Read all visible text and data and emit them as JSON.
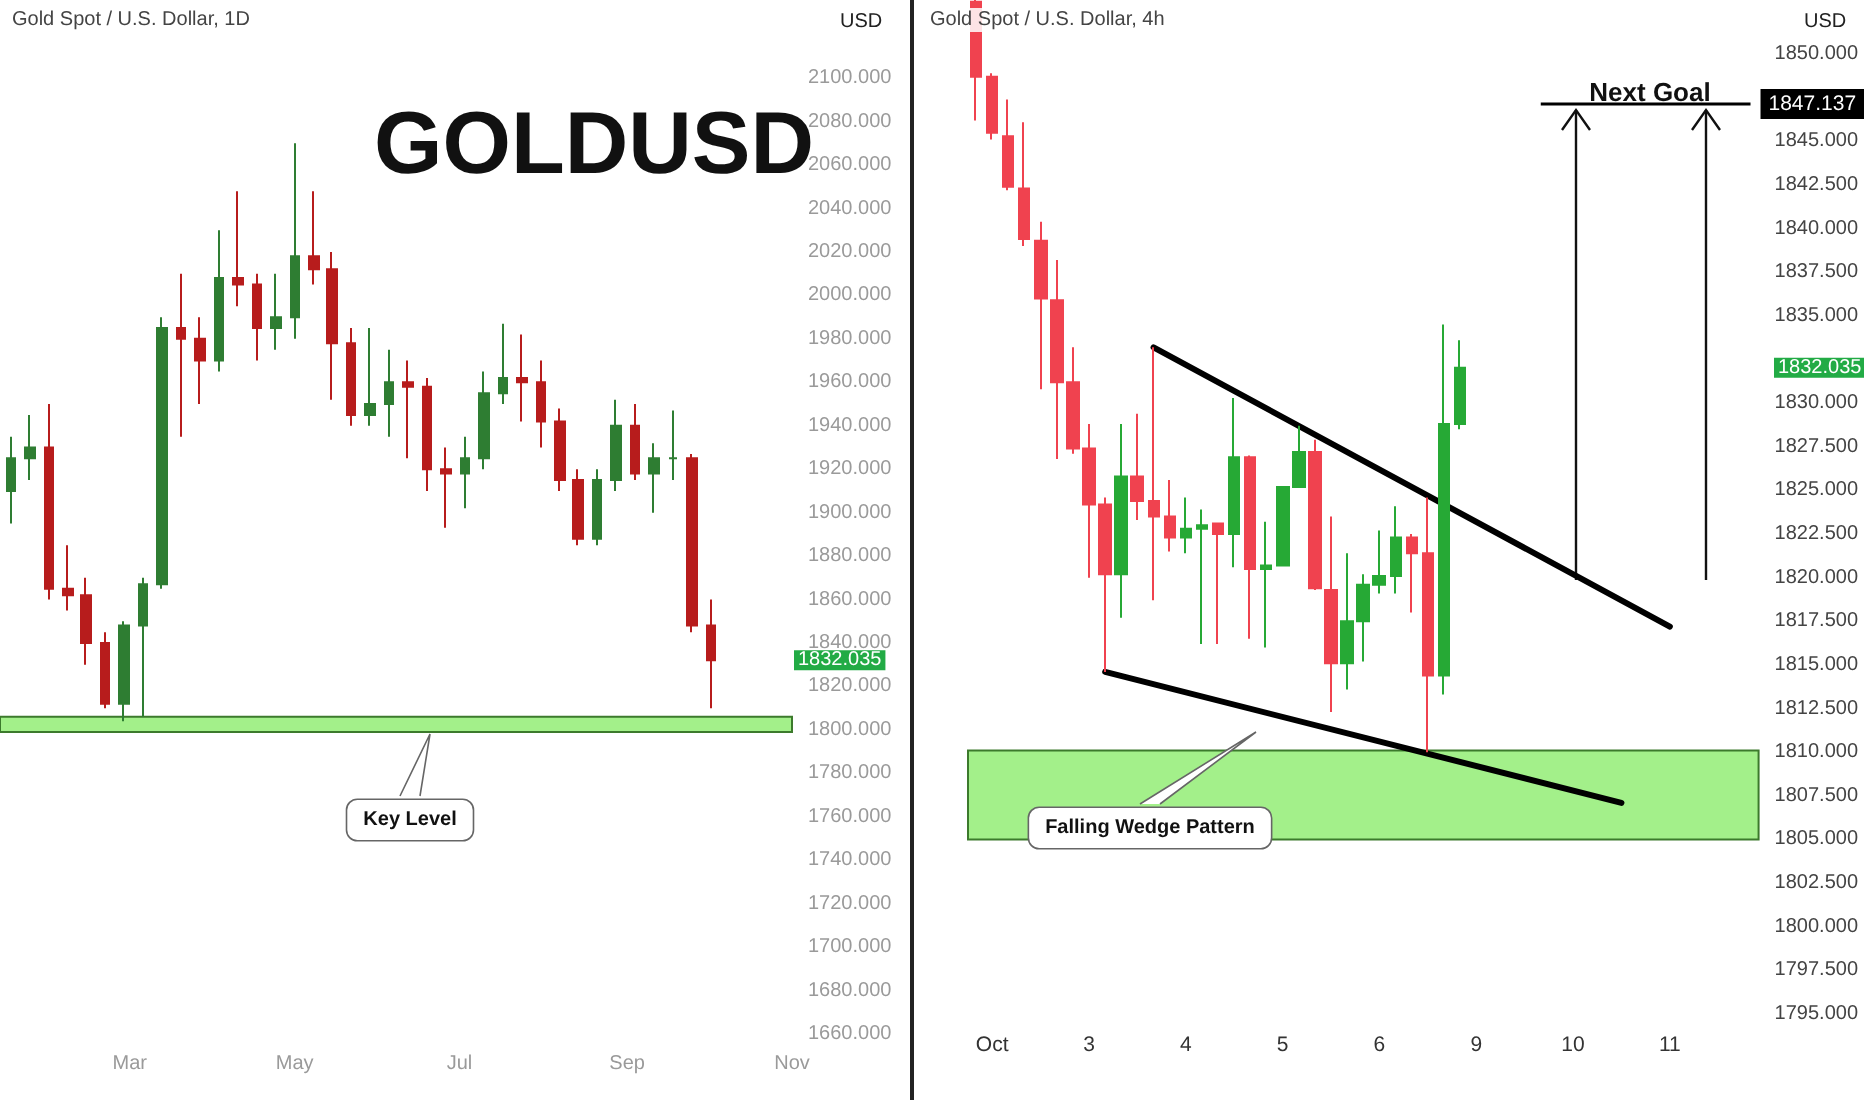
{
  "chart_data": [
    {
      "type": "candlestick",
      "title": "GOLDUSD",
      "subtitle": "Gold Spot / U.S. Dollar, 1D",
      "ylabel": "USD",
      "x": [
        "--01-16",
        "--01-23",
        "--01-30",
        "--02-06",
        "--02-13",
        "--02-20",
        "--02-27",
        "--03-06",
        "--03-13",
        "--03-20",
        "--03-27",
        "--04-03",
        "--04-10",
        "--04-17",
        "--04-24",
        "--05-01",
        "--05-08",
        "--05-15",
        "--05-22",
        "--05-29",
        "--06-05",
        "--06-12",
        "--06-19",
        "--06-26",
        "--07-03",
        "--07-10",
        "--07-17",
        "--07-24",
        "--07-31",
        "--08-07",
        "--08-14",
        "--08-21",
        "--08-28",
        "--09-04",
        "--09-11",
        "--09-18",
        "--09-25",
        "--10-02"
      ],
      "ohlc": [
        [
          1910,
          1935,
          1895,
          1925
        ],
        [
          1925,
          1945,
          1915,
          1930
        ],
        [
          1930,
          1950,
          1860,
          1865
        ],
        [
          1865,
          1885,
          1855,
          1862
        ],
        [
          1862,
          1870,
          1830,
          1840
        ],
        [
          1840,
          1845,
          1810,
          1812
        ],
        [
          1812,
          1850,
          1804,
          1848
        ],
        [
          1848,
          1870,
          1806,
          1867
        ],
        [
          1867,
          1990,
          1865,
          1985
        ],
        [
          1985,
          2010,
          1935,
          1980
        ],
        [
          1980,
          1990,
          1950,
          1970
        ],
        [
          1970,
          2030,
          1965,
          2008
        ],
        [
          2008,
          2048,
          1995,
          2005
        ],
        [
          2005,
          2010,
          1970,
          1985
        ],
        [
          1985,
          2010,
          1975,
          1990
        ],
        [
          1990,
          2070,
          1980,
          2018
        ],
        [
          2018,
          2048,
          2005,
          2012
        ],
        [
          2012,
          2020,
          1952,
          1978
        ],
        [
          1978,
          1985,
          1940,
          1945
        ],
        [
          1945,
          1985,
          1940,
          1950
        ],
        [
          1950,
          1975,
          1935,
          1960
        ],
        [
          1960,
          1970,
          1925,
          1958
        ],
        [
          1958,
          1962,
          1910,
          1920
        ],
        [
          1920,
          1930,
          1893,
          1918
        ],
        [
          1918,
          1935,
          1902,
          1925
        ],
        [
          1925,
          1965,
          1920,
          1955
        ],
        [
          1955,
          1987,
          1950,
          1962
        ],
        [
          1962,
          1982,
          1942,
          1960
        ],
        [
          1960,
          1970,
          1930,
          1942
        ],
        [
          1942,
          1948,
          1910,
          1915
        ],
        [
          1915,
          1920,
          1885,
          1888
        ],
        [
          1888,
          1920,
          1885,
          1915
        ],
        [
          1915,
          1952,
          1910,
          1940
        ],
        [
          1940,
          1950,
          1915,
          1918
        ],
        [
          1918,
          1932,
          1900,
          1925
        ],
        [
          1925,
          1947,
          1915,
          1925
        ],
        [
          1925,
          1927,
          1845,
          1848
        ],
        [
          1848,
          1860,
          1810,
          1832.035
        ]
      ],
      "colors": [
        "#2e7d32",
        "#2e7d32",
        "#b71c1c",
        "#b71c1c",
        "#b71c1c",
        "#b71c1c",
        "#2e7d32",
        "#2e7d32",
        "#2e7d32",
        "#b71c1c",
        "#b71c1c",
        "#2e7d32",
        "#b71c1c",
        "#b71c1c",
        "#2e7d32",
        "#2e7d32",
        "#b71c1c",
        "#b71c1c",
        "#b71c1c",
        "#2e7d32",
        "#2e7d32",
        "#b71c1c",
        "#b71c1c",
        "#b71c1c",
        "#2e7d32",
        "#2e7d32",
        "#2e7d32",
        "#b71c1c",
        "#b71c1c",
        "#b71c1c",
        "#b71c1c",
        "#2e7d32",
        "#2e7d32",
        "#b71c1c",
        "#2e7d32",
        "#2e7d32",
        "#b71c1c",
        "#b71c1c"
      ],
      "xlim": [
        "--01-12",
        "--11-01"
      ],
      "xticks": [
        {
          "value": "--03-01",
          "label": "Mar"
        },
        {
          "value": "--05-01",
          "label": "May"
        },
        {
          "value": "--07-01",
          "label": "Jul"
        },
        {
          "value": "--09-01",
          "label": "Sep"
        },
        {
          "value": "--11-01",
          "label": "Nov"
        }
      ],
      "ylim": [
        1660,
        2136
      ],
      "yticks": [
        {
          "value": 1660,
          "label": "1660.000"
        },
        {
          "value": 1680,
          "label": "1680.000"
        },
        {
          "value": 1700,
          "label": "1700.000"
        },
        {
          "value": 1720,
          "label": "1720.000"
        },
        {
          "value": 1740,
          "label": "1740.000"
        },
        {
          "value": 1760,
          "label": "1760.000"
        },
        {
          "value": 1780,
          "label": "1780.000"
        },
        {
          "value": 1800,
          "label": "1800.000"
        },
        {
          "value": 1820,
          "label": "1820.000"
        },
        {
          "value": 1840,
          "label": "1840.000"
        },
        {
          "value": 1860,
          "label": "1860.000"
        },
        {
          "value": 1880,
          "label": "1880.000"
        },
        {
          "value": 1900,
          "label": "1900.000"
        },
        {
          "value": 1920,
          "label": "1920.000"
        },
        {
          "value": 1940,
          "label": "1940.000"
        },
        {
          "value": 1960,
          "label": "1960.000"
        },
        {
          "value": 1980,
          "label": "1980.000"
        },
        {
          "value": 2000,
          "label": "2000.000"
        },
        {
          "value": 2020,
          "label": "2020.000"
        },
        {
          "value": 2040,
          "label": "2040.000"
        },
        {
          "value": 2060,
          "label": "2060.000"
        },
        {
          "value": 2080,
          "label": "2080.000"
        },
        {
          "value": 2100,
          "label": "2100.000"
        }
      ],
      "bands": [
        {
          "axis": "y",
          "from": 1799,
          "to": 1806,
          "color": "#a3f08a"
        }
      ],
      "annotations": [
        "Key Level",
        "1832.035"
      ]
    },
    {
      "type": "candlestick",
      "subtitle": "Gold Spot / U.S. Dollar, 4h",
      "ylabel": "USD",
      "categories": [
        null,
        "Oct",
        null,
        null,
        null,
        null,
        null,
        "3",
        null,
        null,
        null,
        null,
        null,
        "4",
        null,
        null,
        null,
        null,
        null,
        "5",
        null,
        null,
        null,
        null,
        null,
        "6",
        null,
        null,
        null,
        null,
        null,
        "9",
        null,
        null,
        null,
        null,
        null,
        "10",
        null,
        null,
        null,
        null,
        null,
        "11",
        null,
        null,
        null,
        null,
        null
      ],
      "ohlc": [
        [
          1853.0,
          1853.1,
          1846.2,
          1848.7
        ],
        [
          1848.7,
          1848.9,
          1845.1,
          1845.5
        ],
        [
          1845.3,
          1847.4,
          1842.2,
          1842.4
        ],
        [
          1842.3,
          1846.1,
          1839.0,
          1839.4
        ],
        [
          1839.3,
          1840.4,
          1830.8,
          1836.0
        ],
        [
          1835.9,
          1838.2,
          1826.8,
          1831.2
        ],
        [
          1831.2,
          1833.2,
          1827.1,
          1827.4
        ],
        [
          1827.4,
          1828.8,
          1820.0,
          1824.2
        ],
        [
          1824.2,
          1824.6,
          1814.6,
          1820.2
        ],
        [
          1820.2,
          1828.8,
          1817.7,
          1825.8
        ],
        [
          1825.8,
          1829.4,
          1823.3,
          1824.4
        ],
        [
          1824.4,
          1833.2,
          1818.7,
          1823.5
        ],
        [
          1823.5,
          1825.6,
          1821.5,
          1822.3
        ],
        [
          1822.3,
          1824.6,
          1821.4,
          1822.8
        ],
        [
          1822.8,
          1823.9,
          1816.2,
          1823.0
        ],
        [
          1823.1,
          1823.1,
          1816.2,
          1822.5
        ],
        [
          1822.5,
          1830.3,
          1820.6,
          1826.9
        ],
        [
          1826.9,
          1827.0,
          1816.5,
          1820.5
        ],
        [
          1820.5,
          1823.2,
          1816.0,
          1820.7
        ],
        [
          1820.7,
          1825.2,
          1820.7,
          1825.2
        ],
        [
          1825.2,
          1828.7,
          1825.2,
          1827.2
        ],
        [
          1827.2,
          1827.9,
          1819.3,
          1819.4
        ],
        [
          1819.3,
          1823.5,
          1812.3,
          1815.1
        ],
        [
          1815.1,
          1821.4,
          1813.6,
          1817.5
        ],
        [
          1817.5,
          1820.2,
          1815.2,
          1819.6
        ],
        [
          1819.6,
          1822.7,
          1819.1,
          1820.1
        ],
        [
          1820.1,
          1824.1,
          1819.1,
          1822.3
        ],
        [
          1822.3,
          1822.5,
          1818.0,
          1821.4
        ],
        [
          1821.4,
          1824.6,
          1810.0,
          1814.4
        ],
        [
          1814.4,
          1834.5,
          1813.3,
          1828.8
        ],
        [
          1828.8,
          1833.6,
          1828.5,
          1832.035
        ],
        null,
        null,
        null,
        null,
        null,
        null,
        null,
        null,
        null,
        null,
        null,
        null,
        null,
        null,
        null,
        null,
        null,
        null
      ],
      "colors": [
        "#f0424f",
        "#f0424f",
        "#f0424f",
        "#f0424f",
        "#f0424f",
        "#f0424f",
        "#f0424f",
        "#f0424f",
        "#f0424f",
        "#26a935",
        "#f0424f",
        "#f0424f",
        "#f0424f",
        "#26a935",
        "#26a935",
        "#f0424f",
        "#26a935",
        "#f0424f",
        "#26a935",
        "#26a935",
        "#26a935",
        "#f0424f",
        "#f0424f",
        "#26a935",
        "#26a935",
        "#26a935",
        "#26a935",
        "#f0424f",
        "#f0424f",
        "#26a935",
        "#26a935",
        null,
        null,
        null,
        null,
        null,
        null,
        null,
        null,
        null,
        null,
        null,
        null,
        null,
        null,
        null,
        null,
        null,
        null
      ],
      "series": [
        {
          "type": "line",
          "color": "#000000",
          "values": [
            null,
            null,
            null,
            null,
            null,
            null,
            null,
            null,
            null,
            null,
            null,
            1833.2,
            null,
            null,
            null,
            null,
            null,
            null,
            null,
            null,
            null,
            null,
            null,
            null,
            null,
            null,
            null,
            null,
            null,
            null,
            null,
            null,
            null,
            null,
            null,
            null,
            null,
            null,
            null,
            null,
            null,
            null,
            null,
            1817.2,
            null,
            null,
            null,
            null,
            null
          ]
        },
        {
          "type": "line",
          "color": "#000000",
          "values": [
            null,
            null,
            null,
            null,
            null,
            null,
            null,
            null,
            1814.6,
            null,
            null,
            null,
            null,
            null,
            null,
            null,
            null,
            null,
            null,
            null,
            null,
            null,
            null,
            null,
            null,
            null,
            null,
            null,
            null,
            null,
            null,
            null,
            null,
            null,
            null,
            null,
            null,
            null,
            null,
            null,
            1807.1,
            null,
            null,
            null,
            null,
            null,
            null,
            null,
            null
          ]
        }
      ],
      "ylim": [
        1795,
        1853.1
      ],
      "yticks": [
        {
          "value": 1795,
          "label": "1795.000"
        },
        {
          "value": 1797.5,
          "label": "1797.500"
        },
        {
          "value": 1800,
          "label": "1800.000"
        },
        {
          "value": 1802.5,
          "label": "1802.500"
        },
        {
          "value": 1805,
          "label": "1805.000"
        },
        {
          "value": 1807.5,
          "label": "1807.500"
        },
        {
          "value": 1810,
          "label": "1810.000"
        },
        {
          "value": 1812.5,
          "label": "1812.500"
        },
        {
          "value": 1815,
          "label": "1815.000"
        },
        {
          "value": 1817.5,
          "label": "1817.500"
        },
        {
          "value": 1820,
          "label": "1820.000"
        },
        {
          "value": 1822.5,
          "label": "1822.500"
        },
        {
          "value": 1825,
          "label": "1825.000"
        },
        {
          "value": 1827.5,
          "label": "1827.500"
        },
        {
          "value": 1830,
          "label": "1830.000"
        },
        {
          "value": 1835,
          "label": "1835.000"
        },
        {
          "value": 1837.5,
          "label": "1837.500"
        },
        {
          "value": 1840,
          "label": "1840.000"
        },
        {
          "value": 1842.5,
          "label": "1842.500"
        },
        {
          "value": 1845,
          "label": "1845.000"
        },
        {
          "value": 1850,
          "label": "1850.000"
        }
      ],
      "bands": [
        {
          "axis": "y",
          "from": 1805,
          "to": 1810.1,
          "color": "#a3f08a"
        }
      ],
      "ref_lines": [
        {
          "axis": "y",
          "value": 1847.137,
          "label": "1847.137",
          "color": "#000000"
        }
      ],
      "annotations": [
        "Falling Wedge Pattern",
        "Next Goal",
        "1832.035"
      ]
    }
  ]
}
